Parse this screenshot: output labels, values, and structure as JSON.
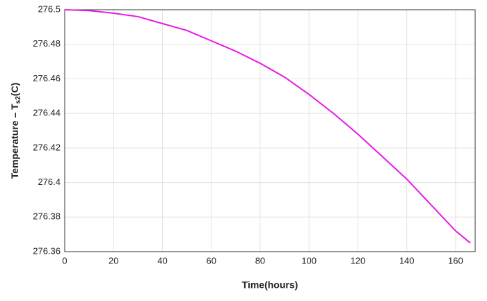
{
  "chart_data": {
    "type": "line",
    "xlabel": "Time(hours)",
    "ylabel": [
      "Temperature – T",
      "s2",
      "(C)"
    ],
    "x": [
      0,
      10,
      20,
      30,
      40,
      50,
      60,
      70,
      80,
      90,
      100,
      110,
      120,
      130,
      140,
      150,
      160,
      166
    ],
    "series": [
      {
        "color": "#e619e6",
        "values": [
          276.5,
          276.4995,
          276.498,
          276.496,
          276.492,
          276.488,
          276.482,
          276.476,
          276.469,
          276.461,
          276.451,
          276.44,
          276.428,
          276.415,
          276.402,
          276.387,
          276.372,
          276.365
        ]
      }
    ],
    "xlim": [
      0,
      168
    ],
    "xticks": [
      0,
      20,
      40,
      60,
      80,
      100,
      120,
      140,
      160
    ],
    "ylim": [
      276.36,
      276.5
    ],
    "yticks": [
      276.36,
      276.38,
      276.4,
      276.42,
      276.44,
      276.46,
      276.48,
      276.5
    ],
    "grid": true
  }
}
